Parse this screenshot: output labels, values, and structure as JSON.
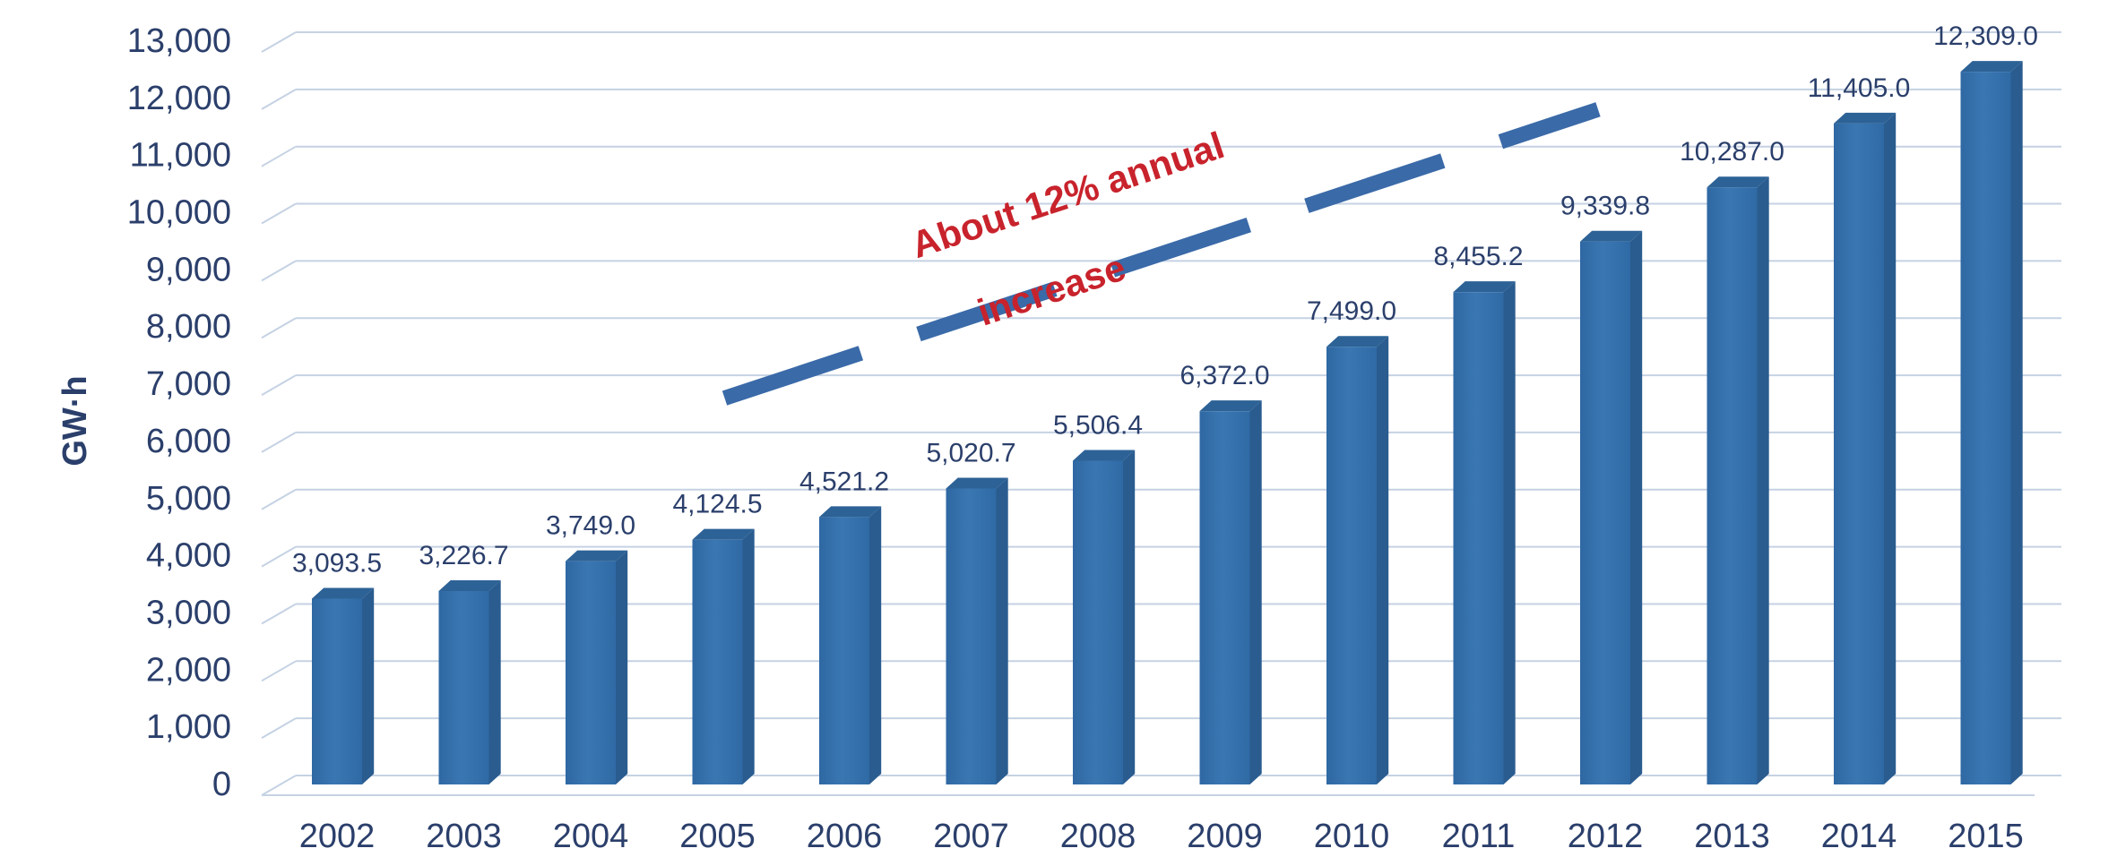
{
  "chart_data": {
    "type": "bar",
    "title": "",
    "xlabel": "",
    "ylabel": "GW·h",
    "ylim": [
      0,
      13000
    ],
    "yticks": [
      0,
      1000,
      2000,
      3000,
      4000,
      5000,
      6000,
      7000,
      8000,
      9000,
      10000,
      11000,
      12000,
      13000
    ],
    "ytick_labels": [
      "0",
      "1,000",
      "2,000",
      "3,000",
      "4,000",
      "5,000",
      "6,000",
      "7,000",
      "8,000",
      "9,000",
      "10,000",
      "11,000",
      "12,000",
      "13,000"
    ],
    "categories": [
      "2002",
      "2003",
      "2004",
      "2005",
      "2006",
      "2007",
      "2008",
      "2009",
      "2010",
      "2011",
      "2012",
      "2013",
      "2014",
      "2015"
    ],
    "values": [
      3093.5,
      3226.7,
      3749.0,
      4124.5,
      4521.2,
      5020.7,
      5506.4,
      6372.0,
      7499.0,
      8455.2,
      9339.8,
      10287.0,
      11405.0,
      12309.0
    ],
    "value_labels": [
      "3,093.5",
      "3,226.7",
      "3,749.0",
      "4,124.5",
      "4,521.2",
      "5,020.7",
      "5,506.4",
      "6,372.0",
      "7,499.0",
      "8,455.2",
      "9,339.8",
      "10,287.0",
      "11,405.0",
      "12,309.0"
    ],
    "grid": true,
    "annotation": {
      "line1": "About 12% annual",
      "line2": "increase",
      "trend_from": [
        "2005",
        6600
      ],
      "trend_to": [
        "2012",
        11650
      ]
    }
  },
  "colors": {
    "bar_front": "#3a77b2",
    "bar_side": "#2a5c8f",
    "bar_top": "#2d6296",
    "trend_line": "#3a6aa8",
    "annotation": "#c8232c",
    "grid": "#c5d2e3",
    "text": "#2b3f6b"
  }
}
